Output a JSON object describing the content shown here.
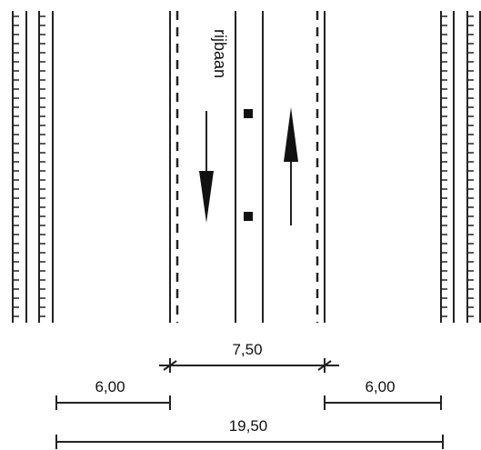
{
  "road": {
    "lane_label": "rijbaan",
    "lane_direction_left": "down",
    "lane_direction_right": "up"
  },
  "dimensions": {
    "road_width": "7,50",
    "left_side_width": "6,00",
    "right_side_width": "6,00",
    "total_width": "19,50"
  },
  "colors": {
    "line": "#222222",
    "background": "#ffffff"
  },
  "icons": {
    "arrow_down": "arrow-down-icon",
    "arrow_up": "arrow-up-icon"
  }
}
